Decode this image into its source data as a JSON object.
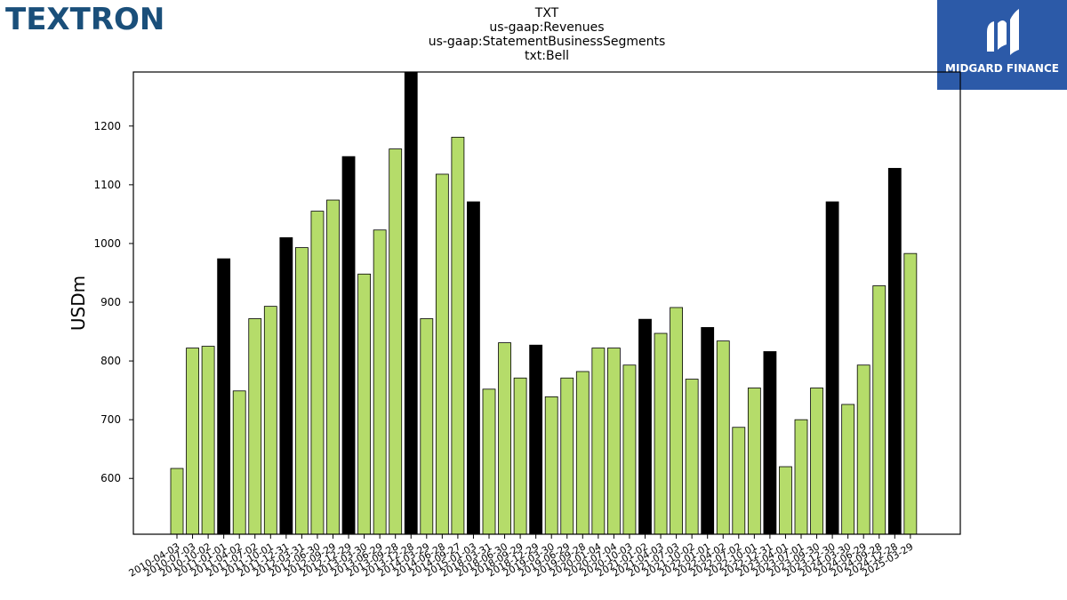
{
  "header": {
    "company_logo_text": "TEXTRON",
    "partner_logo_text": "MIDGARD FINANCE"
  },
  "colors": {
    "normal_bar": "#b5dc6a",
    "highlight_bar": "#000000",
    "brand_blue": "#1a4f7a",
    "partner_blue": "#2c5aa8"
  },
  "chart_data": {
    "type": "bar",
    "title_lines": [
      "TXT",
      "us-gaap:Revenues",
      "us-gaap:StatementBusinessSegments",
      "txt:Bell"
    ],
    "ylabel": "USDm",
    "xlabel": "",
    "ylim": [
      505,
      1292
    ],
    "yticks": [
      600,
      700,
      800,
      900,
      1000,
      1100,
      1200
    ],
    "grid": false,
    "categories": [
      "2010-04-03",
      "2010-07-03",
      "2010-10-02",
      "2011-01-01",
      "2011-04-02",
      "2011-07-02",
      "2011-10-01",
      "2011-12-31",
      "2012-03-31",
      "2012-06-30",
      "2012-09-29",
      "2012-12-29",
      "2013-03-30",
      "2013-06-29",
      "2013-09-28",
      "2013-12-28",
      "2014-03-29",
      "2014-06-28",
      "2014-09-27",
      "2015-01-03",
      "2018-03-31",
      "2018-06-30",
      "2018-09-29",
      "2018-12-29",
      "2019-03-30",
      "2019-06-29",
      "2019-09-28",
      "2020-01-04",
      "2020-07-04",
      "2020-10-03",
      "2021-01-02",
      "2021-04-03",
      "2021-07-03",
      "2021-10-02",
      "2022-01-01",
      "2022-04-02",
      "2022-07-02",
      "2022-10-01",
      "2022-12-31",
      "2023-04-01",
      "2023-07-01",
      "2023-09-30",
      "2023-12-30",
      "2024-03-30",
      "2024-06-29",
      "2024-09-28",
      "2024-12-28",
      "2025-03-29"
    ],
    "values": [
      617,
      822,
      825,
      974,
      749,
      872,
      893,
      1010,
      993,
      1055,
      1074,
      1148,
      948,
      1023,
      1161,
      1292,
      872,
      1118,
      1181,
      1071,
      752,
      831,
      771,
      827,
      739,
      771,
      782,
      822,
      822,
      793,
      871,
      847,
      891,
      769,
      857,
      834,
      687,
      754,
      816,
      620,
      700,
      754,
      1071,
      726,
      793,
      928,
      1128,
      983
    ],
    "highlighted": [
      false,
      false,
      false,
      true,
      false,
      false,
      false,
      true,
      false,
      false,
      false,
      true,
      false,
      false,
      false,
      true,
      false,
      false,
      false,
      true,
      false,
      false,
      false,
      true,
      false,
      false,
      false,
      false,
      false,
      false,
      true,
      false,
      false,
      false,
      true,
      false,
      false,
      false,
      true,
      false,
      false,
      false,
      true,
      false,
      false,
      false,
      true,
      false
    ]
  }
}
